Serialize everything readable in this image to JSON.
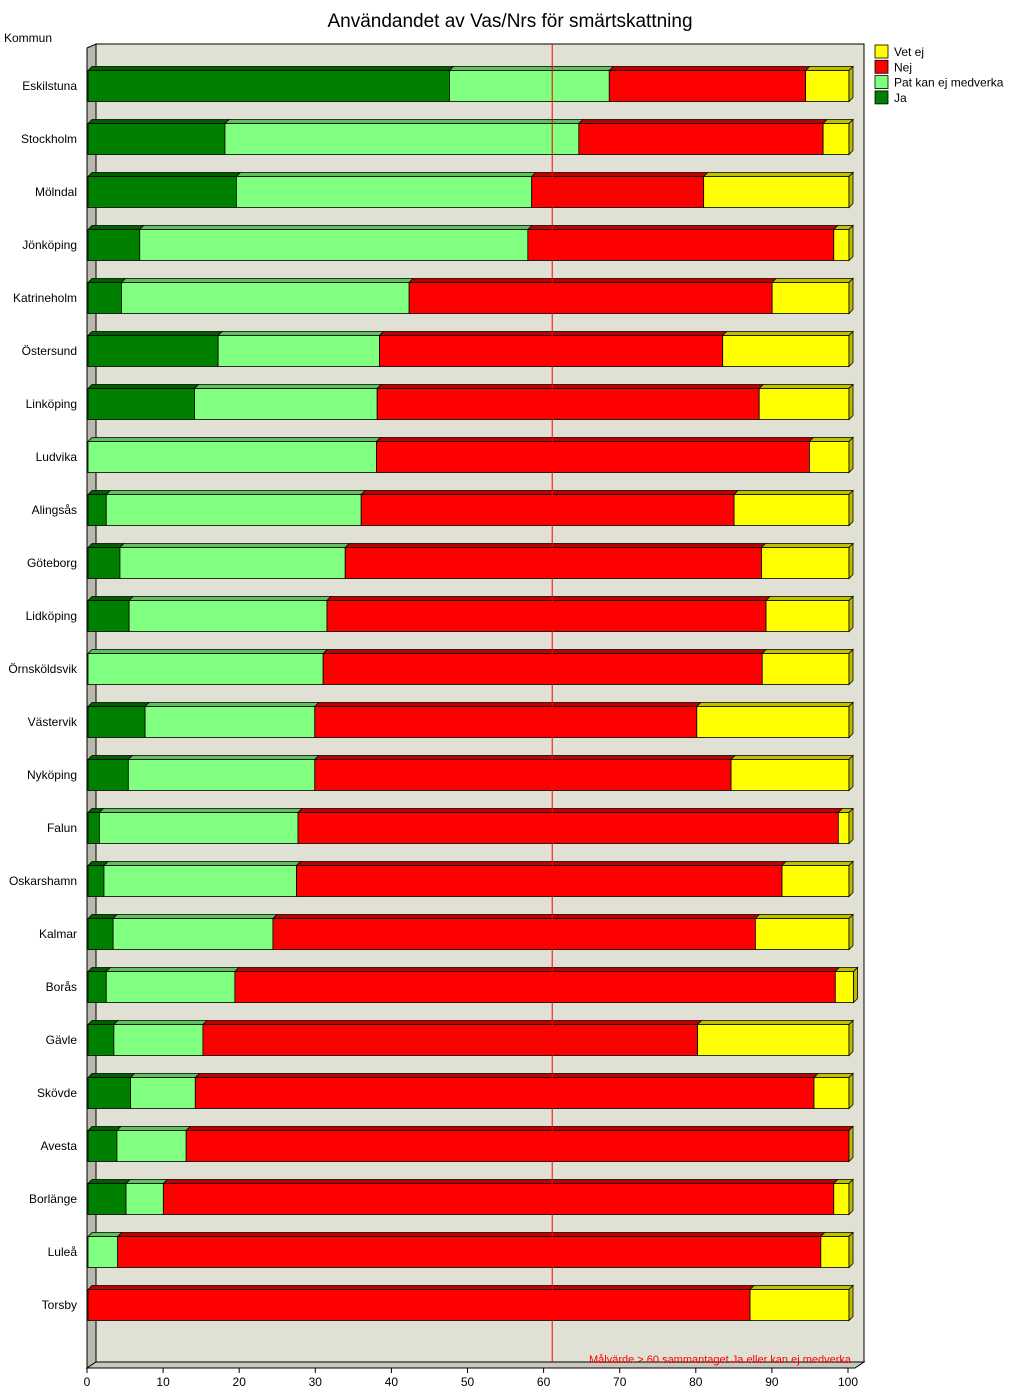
{
  "chart_data": {
    "type": "bar",
    "orientation": "horizontal",
    "stacked": true,
    "title": "Användandet av Vas/Nrs för smärtskattning",
    "ylabel": "Kommun",
    "xlabel": "",
    "xlim": [
      0,
      100
    ],
    "x_ticks": [
      "0",
      "10",
      "20",
      "30",
      "40",
      "50",
      "60",
      "70",
      "80",
      "90",
      "100"
    ],
    "grid": false,
    "legend_position": "top-right",
    "categories": [
      "Eskilstuna",
      "Stockholm",
      "Mölndal",
      "Jönköping",
      "Katrineholm",
      "Östersund",
      "Linköping",
      "Ludvika",
      "Alingsås",
      "Göteborg",
      "Lidköping",
      "Örnsköldsvik",
      "Västervik",
      "Nyköping",
      "Falun",
      "Oskarshamn",
      "Kalmar",
      "Borås",
      "Gävle",
      "Skövde",
      "Avesta",
      "Borlänge",
      "Luleå",
      "Torsby"
    ],
    "series": [
      {
        "name": "Ja",
        "color": "#008000",
        "values": [
          47.5,
          18,
          19.5,
          6.8,
          4.4,
          17.1,
          14,
          0,
          2.4,
          4.2,
          5.4,
          0,
          7.5,
          5.3,
          1.5,
          2.1,
          3.3,
          2.4,
          3.4,
          5.6,
          3.8,
          5,
          0,
          0
        ]
      },
      {
        "name": "Pat kan ej medverka",
        "color": "#80ff80",
        "values": [
          21,
          46.5,
          38.8,
          51,
          37.8,
          21.2,
          24,
          37.9,
          33.5,
          29.6,
          26,
          30.9,
          22.3,
          24.5,
          26.1,
          25.3,
          21,
          16.9,
          11.7,
          8.5,
          9.1,
          4.9,
          3.9,
          0
        ]
      },
      {
        "name": "Nej",
        "color": "#ff0000",
        "values": [
          25.8,
          32.1,
          22.6,
          40.2,
          47.7,
          45.1,
          50.2,
          56.9,
          49,
          54.7,
          57.7,
          57.7,
          50.2,
          54.7,
          71,
          63.8,
          63.4,
          78.9,
          65,
          81.3,
          87.1,
          88.1,
          92.4,
          87
        ]
      },
      {
        "name": "Vet ej",
        "color": "#ffff00",
        "values": [
          5.7,
          3.4,
          19.1,
          2,
          10.1,
          16.6,
          11.8,
          5.2,
          15.1,
          11.5,
          10.9,
          11.4,
          20,
          15.5,
          1.4,
          8.8,
          12.3,
          2.4,
          19.9,
          4.6,
          0,
          2,
          3.7,
          13
        ]
      }
    ],
    "legend_order": [
      "Vet ej",
      "Nej",
      "Pat kan ej medverka",
      "Ja"
    ],
    "reference_line": {
      "x": 61,
      "color": "#ff0000",
      "label": "Målvärde > 60 sammantaget Ja eller kan ej medverka"
    },
    "plot_background": "#e0e0d4"
  }
}
